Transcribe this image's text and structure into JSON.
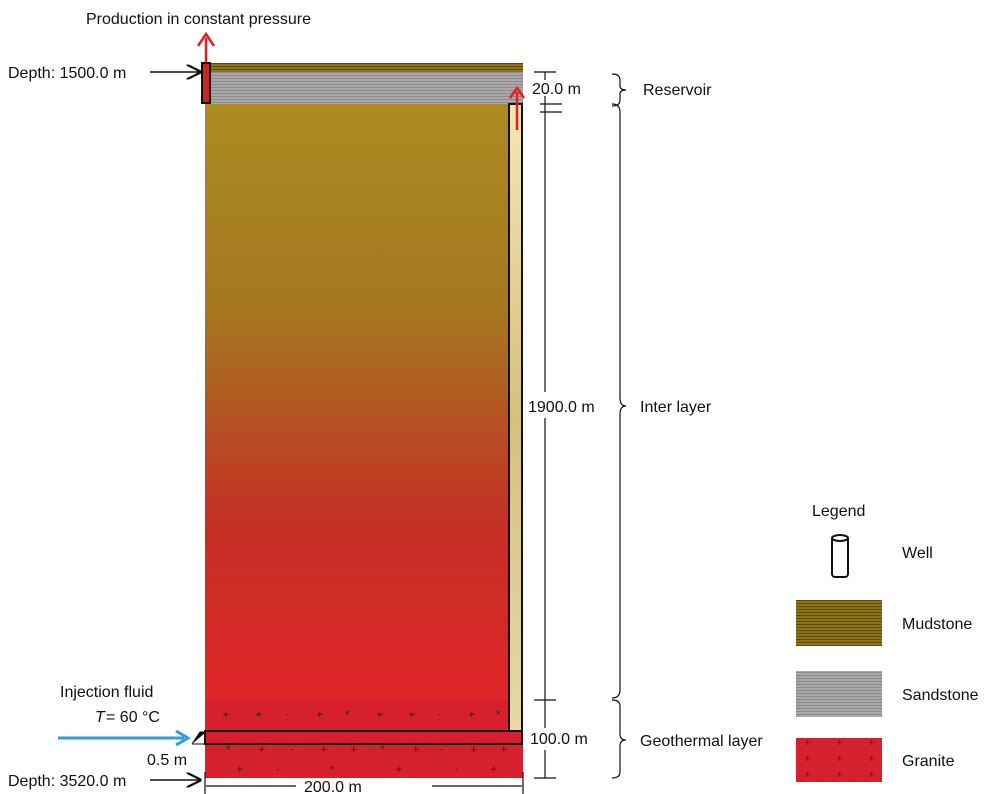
{
  "annotations": {
    "production": "Production in constant pressure",
    "depth_top": "Depth: 1500.0 m",
    "depth_bottom": "Depth: 3520.0 m",
    "injection_title": "Injection fluid",
    "injection_temp_var": "T",
    "injection_temp_val": "= 60 °C",
    "gap": "0.5 m",
    "width": "200.0 m"
  },
  "dimensions": {
    "reservoir": "20.0 m",
    "inter": "1900.0 m",
    "geothermal": "100.0 m"
  },
  "layers": {
    "reservoir": "Reservoir",
    "inter": "Inter layer",
    "geothermal": "Geothermal layer"
  },
  "legend": {
    "title": "Legend",
    "items": [
      {
        "label": "Well",
        "icon": "well-cylinder"
      },
      {
        "label": "Mudstone",
        "color": "#7a6410"
      },
      {
        "label": "Sandstone",
        "color": "#9a9a9a"
      },
      {
        "label": "Granite",
        "color": "#d7252c"
      }
    ]
  },
  "colors": {
    "inter_top": "#ab8b22",
    "inter_bottom": "#e02528",
    "granite": "#d6202e",
    "production_arrow": "#e31e25",
    "injection_arrow": "#2f9fd8"
  }
}
